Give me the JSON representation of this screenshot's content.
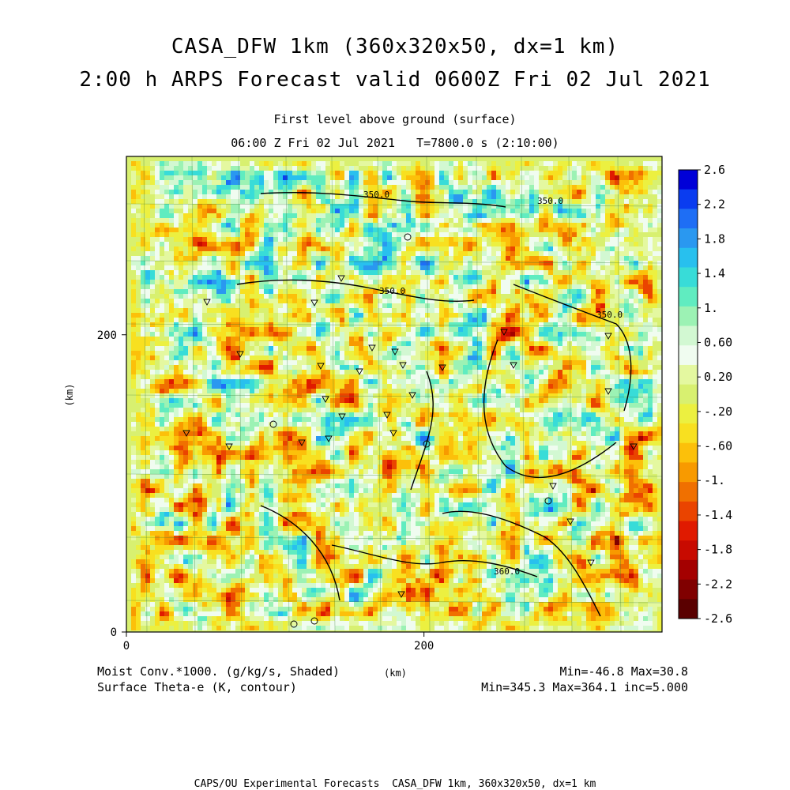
{
  "title": {
    "line1": "CASA_DFW 1km (360x320x50, dx=1 km)",
    "line2": "2:00 h ARPS Forecast valid 0600Z Fri 02 Jul 2021",
    "subtitle1": "First level above ground (surface)",
    "subtitle2": "06:00 Z Fri 02 Jul 2021   T=7800.0 s (2:10:00)"
  },
  "footer": {
    "left1": "Moist Conv.*1000. (g/kg/s, Shaded)",
    "left2": "Surface Theta-e (K, contour)",
    "unit": "(km)",
    "right1": "Min=-46.8 Max=30.8",
    "right2": "Min=345.3 Max=364.1 inc=5.000",
    "credit": "CAPS/OU Experimental Forecasts  CASA_DFW 1km, 360x320x50, dx=1 km"
  },
  "chart_data": {
    "type": "heatmap",
    "xlabel": "(km)",
    "ylabel": "(km)",
    "xlim": [
      0,
      360
    ],
    "ylim": [
      0,
      320
    ],
    "x_ticks": [
      "0",
      "200"
    ],
    "y_ticks": [
      "0",
      "200"
    ],
    "colorbar": {
      "labels": [
        "2.6",
        "2.2",
        "1.8",
        "1.4",
        "1.",
        "0.60",
        "0.20",
        "-.20",
        "-.60",
        "-1.",
        "-1.4",
        "-1.8",
        "-2.2",
        "-2.6"
      ],
      "colors": [
        "#0000d8",
        "#0a3cf0",
        "#1e6ef5",
        "#2a98f0",
        "#28c0ee",
        "#38dcd8",
        "#60ecc0",
        "#9cf2b4",
        "#d2f8d2",
        "#f0fcf0",
        "#e4f8a0",
        "#d8f070",
        "#ecf040",
        "#f8e020",
        "#fcc00a",
        "#f89a00",
        "#f07000",
        "#ea4400",
        "#e01a00",
        "#c80a00",
        "#a40000",
        "#800000",
        "#5a0000"
      ]
    },
    "contour_labels": [
      "350.0",
      "350.0",
      "350.0",
      "350.0",
      "360.0"
    ]
  }
}
